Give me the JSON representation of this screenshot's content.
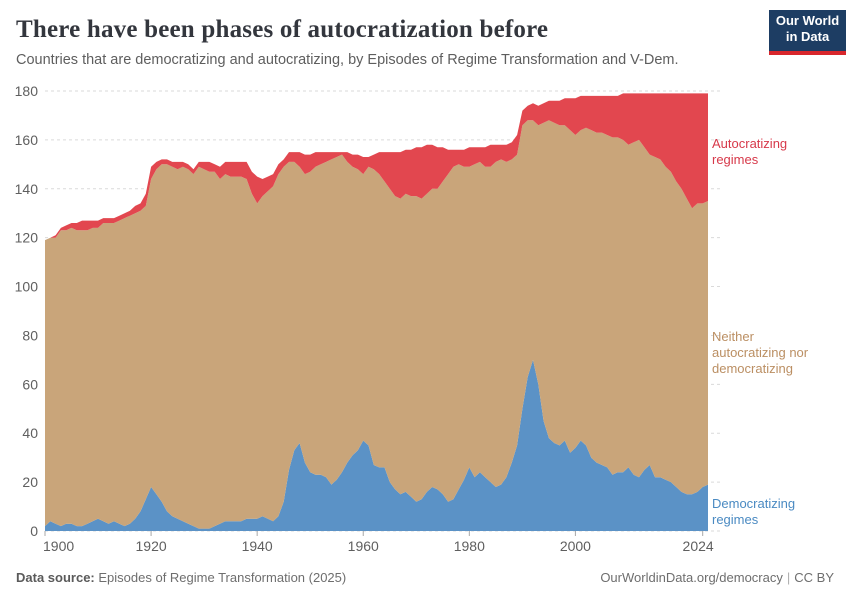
{
  "header": {
    "title": "There have been phases of autocratization before",
    "subtitle": "Countries that are democratizing and autocratizing, by Episodes of Regime Transformation and V-Dem."
  },
  "logo": {
    "line1": "Our World",
    "line2": "in Data",
    "bg_color": "#1d3d63",
    "accent_color": "#d8262c"
  },
  "footer": {
    "datasource_label": "Data source:",
    "datasource_value": "Episodes of Regime Transformation (2025)",
    "credit": "OurWorldinData.org/democracy",
    "separator": "|",
    "license": "CC BY"
  },
  "chart_data": {
    "type": "area",
    "stacked": true,
    "title": "There have been phases of autocratization before",
    "subtitle": "Countries that are democratizing and autocratizing, by Episodes of Regime Transformation and V-Dem.",
    "xlabel": "",
    "ylabel": "",
    "ylim": [
      0,
      180
    ],
    "y_ticks": [
      0,
      20,
      40,
      60,
      80,
      100,
      120,
      140,
      160,
      180
    ],
    "x_ticks": [
      1900,
      1920,
      1940,
      1960,
      1980,
      2000,
      2024
    ],
    "xlim": [
      1900,
      2025
    ],
    "grid": "dashed-horizontal",
    "legend_position": "right-edge-labels",
    "x": [
      1900,
      1901,
      1902,
      1903,
      1904,
      1905,
      1906,
      1907,
      1908,
      1909,
      1910,
      1911,
      1912,
      1913,
      1914,
      1915,
      1916,
      1917,
      1918,
      1919,
      1920,
      1921,
      1922,
      1923,
      1924,
      1925,
      1926,
      1927,
      1928,
      1929,
      1930,
      1931,
      1932,
      1933,
      1934,
      1935,
      1936,
      1937,
      1938,
      1939,
      1940,
      1941,
      1942,
      1943,
      1944,
      1945,
      1946,
      1947,
      1948,
      1949,
      1950,
      1951,
      1952,
      1953,
      1954,
      1955,
      1956,
      1957,
      1958,
      1959,
      1960,
      1961,
      1962,
      1963,
      1964,
      1965,
      1966,
      1967,
      1968,
      1969,
      1970,
      1971,
      1972,
      1973,
      1974,
      1975,
      1976,
      1977,
      1978,
      1979,
      1980,
      1981,
      1982,
      1983,
      1984,
      1985,
      1986,
      1987,
      1988,
      1989,
      1990,
      1991,
      1992,
      1993,
      1994,
      1995,
      1996,
      1997,
      1998,
      1999,
      2000,
      2001,
      2002,
      2003,
      2004,
      2005,
      2006,
      2007,
      2008,
      2009,
      2010,
      2011,
      2012,
      2013,
      2014,
      2015,
      2016,
      2017,
      2018,
      2019,
      2020,
      2021,
      2022,
      2023,
      2024,
      2025
    ],
    "series": [
      {
        "name": "Democratizing regimes",
        "color": "#5b92c6",
        "label_color": "#4a8ac2",
        "values": [
          2,
          4,
          3,
          2,
          3,
          3,
          2,
          2,
          3,
          4,
          5,
          4,
          3,
          4,
          3,
          2,
          3,
          5,
          8,
          13,
          18,
          15,
          12,
          8,
          6,
          5,
          4,
          3,
          2,
          1,
          1,
          1,
          2,
          3,
          4,
          4,
          4,
          4,
          5,
          5,
          5,
          6,
          5,
          4,
          6,
          12,
          25,
          33,
          36,
          28,
          24,
          23,
          23,
          22,
          19,
          21,
          24,
          28,
          31,
          33,
          37,
          35,
          27,
          26,
          26,
          20,
          17,
          15,
          16,
          14,
          12,
          13,
          16,
          18,
          17,
          15,
          12,
          13,
          17,
          21,
          26,
          22,
          24,
          22,
          20,
          18,
          19,
          22,
          28,
          35,
          50,
          63,
          70,
          60,
          45,
          38,
          36,
          35,
          37,
          32,
          34,
          37,
          35,
          30,
          28,
          27,
          26,
          23,
          24,
          24,
          26,
          23,
          22,
          25,
          27,
          22,
          22,
          21,
          20,
          18,
          16,
          15,
          15,
          16,
          18,
          19
        ]
      },
      {
        "name": "Neither autocratizing nor democratizing",
        "color": "#c9a57a",
        "label_color": "#bb8f63",
        "values": [
          117,
          116,
          117,
          121,
          120,
          121,
          121,
          121,
          120,
          120,
          119,
          122,
          123,
          122,
          124,
          126,
          126,
          125,
          123,
          120,
          126,
          133,
          138,
          142,
          143,
          143,
          145,
          145,
          144,
          148,
          147,
          146,
          145,
          141,
          142,
          141,
          141,
          141,
          139,
          133,
          129,
          131,
          134,
          137,
          140,
          137,
          126,
          118,
          113,
          118,
          123,
          126,
          127,
          129,
          133,
          132,
          130,
          123,
          118,
          115,
          109,
          114,
          121,
          120,
          117,
          120,
          120,
          121,
          122,
          123,
          125,
          123,
          122,
          122,
          123,
          128,
          134,
          136,
          133,
          128,
          123,
          128,
          127,
          127,
          129,
          133,
          133,
          129,
          124,
          119,
          116,
          105,
          98,
          106,
          122,
          130,
          131,
          131,
          129,
          132,
          128,
          127,
          130,
          134,
          135,
          136,
          136,
          138,
          137,
          136,
          132,
          136,
          138,
          132,
          127,
          131,
          130,
          128,
          127,
          125,
          124,
          121,
          117,
          118,
          116,
          116
        ]
      },
      {
        "name": "Autocratizing regimes",
        "color": "#e2474f",
        "label_color": "#d7394a",
        "values": [
          0,
          0,
          1,
          1,
          2,
          2,
          3,
          4,
          4,
          3,
          3,
          2,
          2,
          2,
          2,
          2,
          2,
          3,
          3,
          5,
          5,
          3,
          2,
          2,
          2,
          3,
          2,
          2,
          2,
          2,
          3,
          4,
          3,
          5,
          5,
          6,
          6,
          6,
          7,
          9,
          11,
          7,
          6,
          5,
          4,
          3,
          4,
          4,
          6,
          8,
          7,
          6,
          5,
          4,
          3,
          2,
          1,
          4,
          5,
          6,
          7,
          4,
          6,
          9,
          12,
          15,
          18,
          19,
          18,
          19,
          20,
          21,
          20,
          18,
          17,
          14,
          10,
          7,
          6,
          7,
          8,
          7,
          6,
          8,
          9,
          7,
          6,
          7,
          7,
          8,
          6,
          6,
          7,
          8,
          8,
          8,
          9,
          10,
          11,
          13,
          15,
          14,
          13,
          14,
          15,
          15,
          16,
          17,
          17,
          19,
          21,
          20,
          19,
          22,
          25,
          26,
          27,
          30,
          32,
          36,
          39,
          43,
          47,
          45,
          45,
          44
        ]
      }
    ]
  }
}
